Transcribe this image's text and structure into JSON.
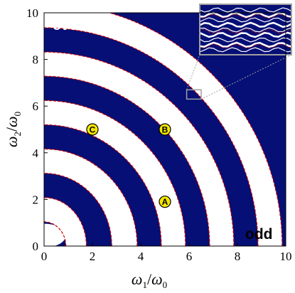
{
  "chart_data": {
    "type": "heatmap",
    "xlabel": "ω",
    "xlabel_sub": "1",
    "xlabel_den": "ω",
    "xlabel_den_sub": "0",
    "ylabel": "ω",
    "ylabel_sub": "2",
    "ylabel_den": "ω",
    "ylabel_den_sub": "0",
    "xlim": [
      0,
      10
    ],
    "ylim": [
      0,
      10
    ],
    "x_ticks": [
      "0",
      "2",
      "4",
      "6",
      "8",
      "10"
    ],
    "y_ticks": [
      "0",
      "2",
      "4",
      "6",
      "8",
      "10"
    ],
    "x_tick_values": [
      0,
      2,
      4,
      6,
      8,
      10
    ],
    "y_tick_values": [
      0,
      2,
      4,
      6,
      8,
      10
    ],
    "regions": [
      {
        "label": "even",
        "color": "#050f75"
      },
      {
        "label": "odd",
        "color": "#ffffff"
      }
    ],
    "boundary_color": "#cc0000",
    "markers": [
      {
        "label": "A",
        "x": 5.0,
        "y": 1.9
      },
      {
        "label": "B",
        "x": 5.0,
        "y": 5.0
      },
      {
        "label": "C",
        "x": 2.0,
        "y": 5.0
      }
    ],
    "inset": {
      "x_range": [
        5.9,
        6.5
      ],
      "y_range": [
        6.3,
        6.7
      ]
    }
  }
}
